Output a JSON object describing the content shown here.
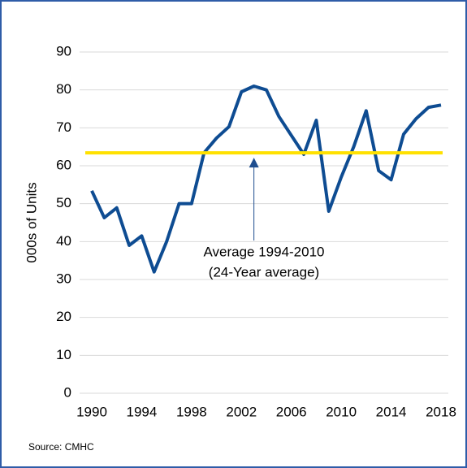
{
  "chart_data": {
    "type": "line",
    "y_label": "000s of Units",
    "x": [
      1990,
      1991,
      1992,
      1993,
      1994,
      1995,
      1996,
      1997,
      1998,
      1999,
      2000,
      2001,
      2002,
      2003,
      2004,
      2005,
      2006,
      2007,
      2008,
      2009,
      2010,
      2011,
      2012,
      2013,
      2014,
      2015,
      2016,
      2017,
      2018
    ],
    "values": [
      53.4,
      46.3,
      48.9,
      39,
      41.5,
      32,
      40,
      50,
      50,
      63.4,
      67.3,
      70.3,
      79.5,
      81,
      80,
      73,
      68,
      63,
      72,
      48,
      57,
      65,
      74.5,
      58.7,
      56.3,
      68.3,
      72.4,
      75.4,
      76
    ],
    "color": "#0e4c92",
    "average_line": {
      "value": 63.4,
      "color": "#ffe100"
    },
    "annotation": [
      "Average 1994-2010",
      "(24-Year average)"
    ],
    "annotation_x": 2003,
    "xlim": [
      1990,
      2018
    ],
    "xticks": [
      1990,
      1994,
      1998,
      2002,
      2006,
      2010,
      2014,
      2018
    ],
    "ylim": [
      0,
      90
    ],
    "yticks": [
      0,
      10,
      20,
      30,
      40,
      50,
      60,
      70,
      80,
      90
    ],
    "grid": true,
    "source": "Source: CMHC"
  }
}
